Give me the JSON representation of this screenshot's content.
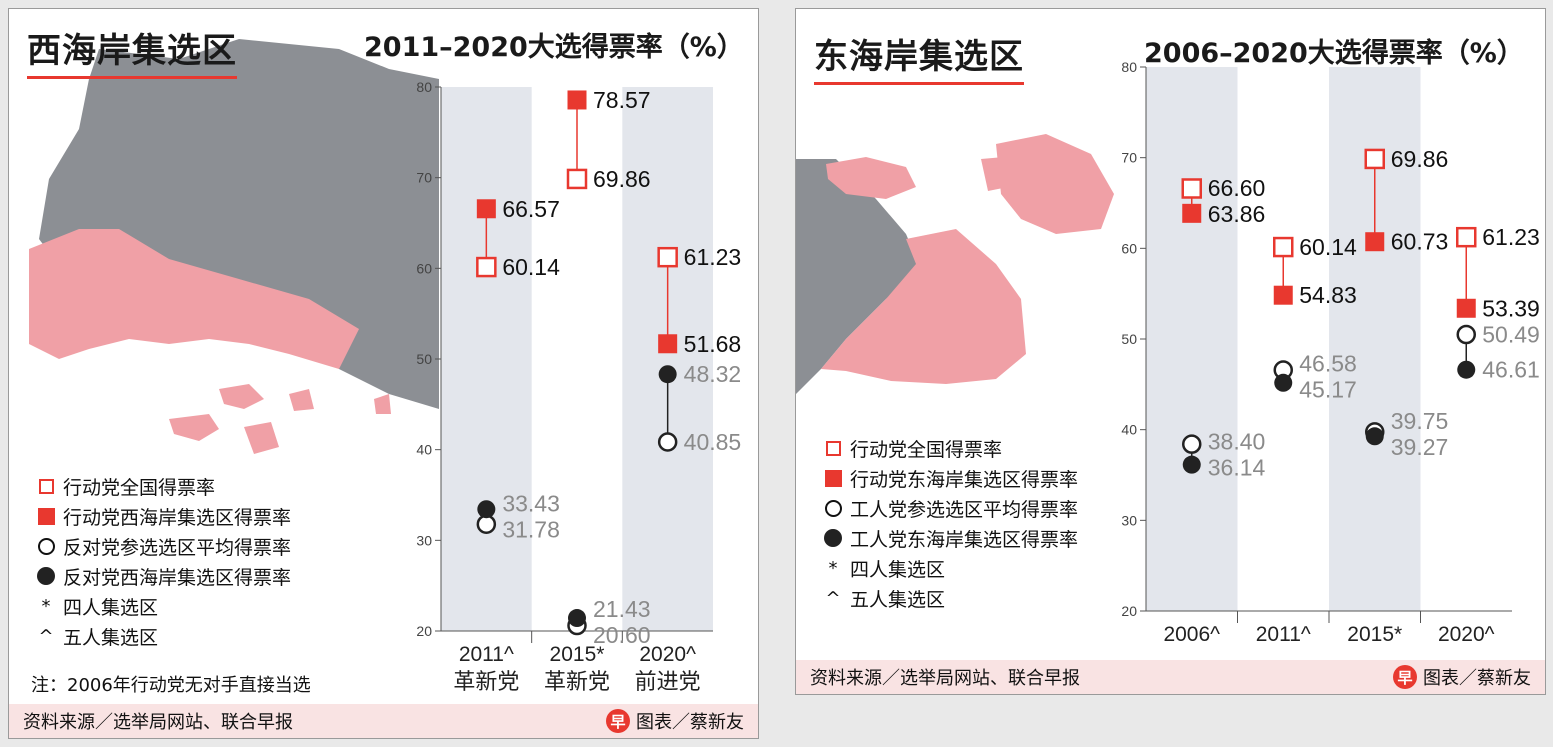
{
  "colors": {
    "accent": "#e8382f",
    "map_land": "#8c8f94",
    "map_constituency": "#f0a0a6",
    "band": "#e3e6ec",
    "opp_label": "#8a8a8a"
  },
  "chart_data": [
    {
      "type": "scatter",
      "region_title": "西海岸集选区",
      "title": "2011–2020大选得票率（%）",
      "ylim": [
        20,
        80
      ],
      "yticks": [
        20,
        30,
        40,
        50,
        60,
        70,
        80
      ],
      "categories": [
        {
          "year": "2011^",
          "party": "革新党"
        },
        {
          "year": "2015*",
          "party": "革新党"
        },
        {
          "year": "2020^",
          "party": "前进党"
        }
      ],
      "series": [
        {
          "name": "行动党全国得票率",
          "marker": "square-open",
          "values": [
            60.14,
            69.86,
            61.23
          ]
        },
        {
          "name": "行动党西海岸集选区得票率",
          "marker": "square-filled",
          "values": [
            66.57,
            78.57,
            51.68
          ]
        },
        {
          "name": "反对党参选选区平均得票率",
          "marker": "circle-open",
          "values": [
            31.78,
            20.6,
            40.85
          ]
        },
        {
          "name": "反对党西海岸集选区得票率",
          "marker": "circle-filled",
          "values": [
            33.43,
            21.43,
            48.32
          ]
        }
      ],
      "legend_extra": [
        {
          "symbol": "*",
          "label": "四人集选区"
        },
        {
          "symbol": "^",
          "label": "五人集选区"
        }
      ],
      "note": "注：2006年行动党无对手直接当选",
      "source": "资料来源／选举局网站、联合早报",
      "credit": "图表／蔡新友",
      "logo_text": "早"
    },
    {
      "type": "scatter",
      "region_title": "东海岸集选区",
      "title": "2006–2020大选得票率（%）",
      "ylim": [
        20,
        80
      ],
      "yticks": [
        20,
        30,
        40,
        50,
        60,
        70,
        80
      ],
      "categories": [
        {
          "year": "2006^",
          "party": ""
        },
        {
          "year": "2011^",
          "party": ""
        },
        {
          "year": "2015*",
          "party": ""
        },
        {
          "year": "2020^",
          "party": ""
        }
      ],
      "series": [
        {
          "name": "行动党全国得票率",
          "marker": "square-open",
          "values": [
            66.6,
            60.14,
            69.86,
            61.23
          ]
        },
        {
          "name": "行动党东海岸集选区得票率",
          "marker": "square-filled",
          "values": [
            63.86,
            54.83,
            60.73,
            53.39
          ]
        },
        {
          "name": "工人党参选选区平均得票率",
          "marker": "circle-open",
          "values": [
            38.4,
            46.58,
            39.75,
            50.49
          ]
        },
        {
          "name": "工人党东海岸集选区得票率",
          "marker": "circle-filled",
          "values": [
            36.14,
            45.17,
            39.27,
            46.61
          ]
        }
      ],
      "legend_extra": [
        {
          "symbol": "*",
          "label": "四人集选区"
        },
        {
          "symbol": "^",
          "label": "五人集选区"
        }
      ],
      "note": "",
      "source": "资料来源／选举局网站、联合早报",
      "credit": "图表／蔡新友",
      "logo_text": "早"
    }
  ]
}
